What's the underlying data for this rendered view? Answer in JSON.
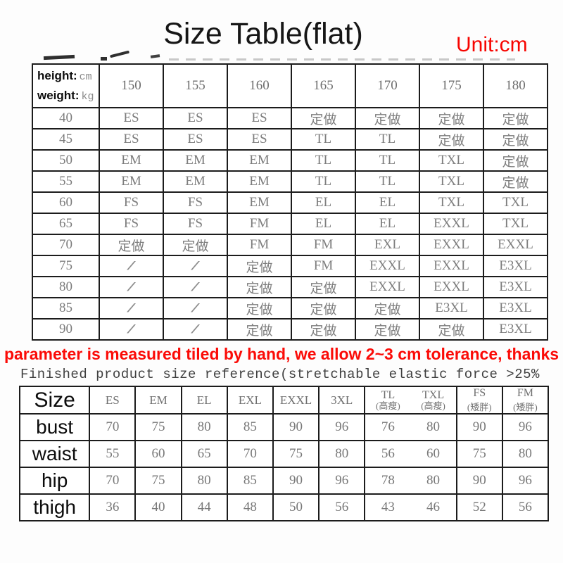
{
  "page": {
    "title": "Size Table(flat)",
    "unit_label": "Unit:cm",
    "tolerance_note": "parameter is measured tiled by hand, we allow 2~3 cm tolerance, thanks",
    "reference_note": "Finished product size reference(stretchable elastic force >25%",
    "colors": {
      "accent_red": "#f70501",
      "table_border": "#1c1c1c",
      "data_gray": "#7d7d7d"
    }
  },
  "size_table": {
    "corner": {
      "height_label": "height:",
      "height_unit": "cm",
      "weight_label": "weight:",
      "weight_unit": "kg"
    },
    "height_columns": [
      "150",
      "155",
      "160",
      "165",
      "170",
      "175",
      "180"
    ],
    "rows": [
      {
        "weight": "40",
        "cells": [
          "ES",
          "ES",
          "ES",
          "定做",
          "定做",
          "定做",
          "定做"
        ]
      },
      {
        "weight": "45",
        "cells": [
          "ES",
          "ES",
          "ES",
          "TL",
          "TL",
          "定做",
          "定做"
        ]
      },
      {
        "weight": "50",
        "cells": [
          "EM",
          "EM",
          "EM",
          "TL",
          "TL",
          "TXL",
          "定做"
        ]
      },
      {
        "weight": "55",
        "cells": [
          "EM",
          "EM",
          "EM",
          "TL",
          "TL",
          "TXL",
          "定做"
        ]
      },
      {
        "weight": "60",
        "cells": [
          "FS",
          "FS",
          "EM",
          "EL",
          "EL",
          "TXL",
          "TXL"
        ]
      },
      {
        "weight": "65",
        "cells": [
          "FS",
          "FS",
          "FM",
          "EL",
          "EL",
          "EXXL",
          "TXL"
        ]
      },
      {
        "weight": "70",
        "cells": [
          "定做",
          "定做",
          "FM",
          "FM",
          "EXL",
          "EXXL",
          "EXXL"
        ]
      },
      {
        "weight": "75",
        "cells": [
          "/",
          "/",
          "定做",
          "FM",
          "EXXL",
          "EXXL",
          "E3XL"
        ]
      },
      {
        "weight": "80",
        "cells": [
          "/",
          "/",
          "定做",
          "定做",
          "EXXL",
          "EXXL",
          "E3XL"
        ]
      },
      {
        "weight": "85",
        "cells": [
          "/",
          "/",
          "定做",
          "定做",
          "定做",
          "E3XL",
          "E3XL"
        ]
      },
      {
        "weight": "90",
        "cells": [
          "/",
          "/",
          "定做",
          "定做",
          "定做",
          "定做",
          "E3XL"
        ]
      }
    ]
  },
  "reference_table": {
    "size_label": "Size",
    "columns": [
      {
        "label": "ES"
      },
      {
        "label": "EM"
      },
      {
        "label": "EL"
      },
      {
        "label": "EXL"
      },
      {
        "label": "EXXL"
      },
      {
        "label": "3XL"
      },
      {
        "label": "TL",
        "sub": "(高瘦)"
      },
      {
        "label": "TXL",
        "sub": "(高瘦)"
      },
      {
        "label": "FS",
        "sub": "(矮胖)"
      },
      {
        "label": "FM",
        "sub": "(矮胖)"
      }
    ],
    "pair_columns": [
      6,
      7
    ],
    "rows": [
      {
        "label": "bust",
        "values": [
          "70",
          "75",
          "80",
          "85",
          "90",
          "96",
          "76",
          "80",
          "90",
          "96"
        ]
      },
      {
        "label": "waist",
        "values": [
          "55",
          "60",
          "65",
          "70",
          "75",
          "80",
          "56",
          "60",
          "75",
          "80"
        ]
      },
      {
        "label": "hip",
        "values": [
          "70",
          "75",
          "80",
          "85",
          "90",
          "96",
          "78",
          "80",
          "90",
          "96"
        ]
      },
      {
        "label": "thigh",
        "values": [
          "36",
          "40",
          "44",
          "48",
          "50",
          "56",
          "43",
          "46",
          "52",
          "56"
        ]
      }
    ]
  }
}
